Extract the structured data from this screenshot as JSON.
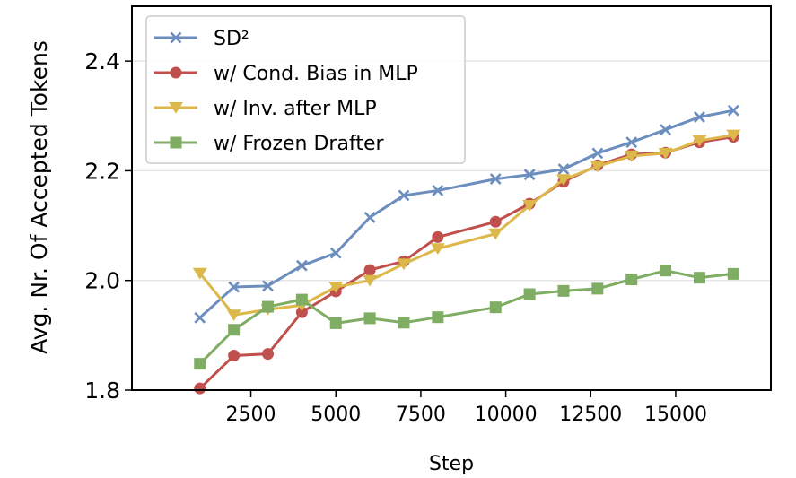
{
  "chart_data": {
    "type": "line",
    "title": "",
    "xlabel": "Step",
    "ylabel": "Avg. Nr. Of Accepted Tokens",
    "xlim": [
      -1000,
      17800
    ],
    "ylim": [
      1.8,
      2.5
    ],
    "x_ticks": [
      2500,
      5000,
      7500,
      10000,
      12500,
      15000
    ],
    "x_tick_labels": [
      "2500",
      "5000",
      "7500",
      "10000",
      "12500",
      "15000"
    ],
    "y_ticks": [
      1.8,
      2.0,
      2.2,
      2.4
    ],
    "y_tick_labels": [
      "1.8",
      "2.0",
      "2.2",
      "2.4"
    ],
    "grid": "horizontal",
    "legend_position": "top-left",
    "series": [
      {
        "name": "SD²",
        "color": "#6c8ebf",
        "marker": "x",
        "x": [
          1000,
          2000,
          3000,
          4000,
          5000,
          6000,
          7000,
          8000,
          9700,
          10700,
          11700,
          12700,
          13700,
          14700,
          15700,
          16700
        ],
        "values": [
          1.932,
          1.988,
          1.99,
          2.027,
          2.05,
          2.115,
          2.155,
          2.164,
          2.185,
          2.193,
          2.203,
          2.232,
          2.252,
          2.275,
          2.298,
          2.31
        ]
      },
      {
        "name": "w/ Cond. Bias in MLP",
        "color": "#c0504d",
        "marker": "circle",
        "x": [
          1000,
          2000,
          3000,
          4000,
          5000,
          6000,
          7000,
          8000,
          9700,
          10700,
          11700,
          12700,
          13700,
          14700,
          15700,
          16700
        ],
        "values": [
          1.803,
          1.863,
          1.866,
          1.942,
          1.98,
          2.019,
          2.035,
          2.079,
          2.107,
          2.14,
          2.18,
          2.21,
          2.23,
          2.233,
          2.252,
          2.262
        ]
      },
      {
        "name": "w/ Inv. after MLP",
        "color": "#dcb84a",
        "marker": "triangle-down",
        "x": [
          1000,
          2000,
          3000,
          4000,
          5000,
          6000,
          7000,
          8000,
          9700,
          10700,
          11700,
          12700,
          13700,
          14700,
          15700,
          16700
        ],
        "values": [
          2.013,
          1.937,
          1.947,
          1.955,
          1.988,
          2.0,
          2.03,
          2.058,
          2.085,
          2.137,
          2.184,
          2.208,
          2.227,
          2.232,
          2.255,
          2.265
        ]
      },
      {
        "name": "w/ Frozen Drafter",
        "color": "#7fad63",
        "marker": "square",
        "x": [
          1000,
          2000,
          3000,
          4000,
          5000,
          6000,
          7000,
          8000,
          9700,
          10700,
          11700,
          12700,
          13700,
          14700,
          15700,
          16700
        ],
        "values": [
          1.848,
          1.91,
          1.952,
          1.965,
          1.922,
          1.931,
          1.923,
          1.933,
          1.951,
          1.975,
          1.981,
          1.985,
          2.002,
          2.018,
          2.005,
          2.012
        ]
      }
    ]
  }
}
